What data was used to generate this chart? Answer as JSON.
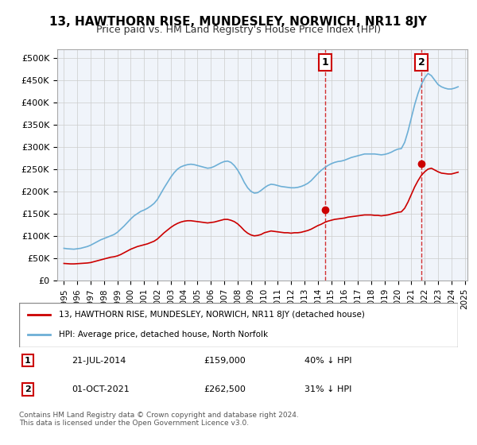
{
  "title": "13, HAWTHORN RISE, MUNDESLEY, NORWICH, NR11 8JY",
  "subtitle": "Price paid vs. HM Land Registry's House Price Index (HPI)",
  "hpi_color": "#6dafd6",
  "price_color": "#cc0000",
  "annotation_color": "#cc0000",
  "vline_color": "#cc0000",
  "background_color": "#ffffff",
  "grid_color": "#cccccc",
  "ylim": [
    0,
    520000
  ],
  "yticks": [
    0,
    50000,
    100000,
    150000,
    200000,
    250000,
    300000,
    350000,
    400000,
    450000,
    500000
  ],
  "ytick_labels": [
    "£0",
    "£50K",
    "£100K",
    "£150K",
    "£200K",
    "£250K",
    "£300K",
    "£350K",
    "£400K",
    "£450K",
    "£500K"
  ],
  "sale1_year": 2014.55,
  "sale1_price": 159000,
  "sale1_label": "1",
  "sale2_year": 2021.75,
  "sale2_price": 262500,
  "sale2_label": "2",
  "legend_red": "13, HAWTHORN RISE, MUNDESLEY, NORWICH, NR11 8JY (detached house)",
  "legend_blue": "HPI: Average price, detached house, North Norfolk",
  "table_row1": [
    "1",
    "21-JUL-2014",
    "£159,000",
    "40% ↓ HPI"
  ],
  "table_row2": [
    "2",
    "01-OCT-2021",
    "£262,500",
    "31% ↓ HPI"
  ],
  "footer": "Contains HM Land Registry data © Crown copyright and database right 2024.\nThis data is licensed under the Open Government Licence v3.0.",
  "hpi_data_x": [
    1995.0,
    1995.25,
    1995.5,
    1995.75,
    1996.0,
    1996.25,
    1996.5,
    1996.75,
    1997.0,
    1997.25,
    1997.5,
    1997.75,
    1998.0,
    1998.25,
    1998.5,
    1998.75,
    1999.0,
    1999.25,
    1999.5,
    1999.75,
    2000.0,
    2000.25,
    2000.5,
    2000.75,
    2001.0,
    2001.25,
    2001.5,
    2001.75,
    2002.0,
    2002.25,
    2002.5,
    2002.75,
    2003.0,
    2003.25,
    2003.5,
    2003.75,
    2004.0,
    2004.25,
    2004.5,
    2004.75,
    2005.0,
    2005.25,
    2005.5,
    2005.75,
    2006.0,
    2006.25,
    2006.5,
    2006.75,
    2007.0,
    2007.25,
    2007.5,
    2007.75,
    2008.0,
    2008.25,
    2008.5,
    2008.75,
    2009.0,
    2009.25,
    2009.5,
    2009.75,
    2010.0,
    2010.25,
    2010.5,
    2010.75,
    2011.0,
    2011.25,
    2011.5,
    2011.75,
    2012.0,
    2012.25,
    2012.5,
    2012.75,
    2013.0,
    2013.25,
    2013.5,
    2013.75,
    2014.0,
    2014.25,
    2014.5,
    2014.75,
    2015.0,
    2015.25,
    2015.5,
    2015.75,
    2016.0,
    2016.25,
    2016.5,
    2016.75,
    2017.0,
    2017.25,
    2017.5,
    2017.75,
    2018.0,
    2018.25,
    2018.5,
    2018.75,
    2019.0,
    2019.25,
    2019.5,
    2019.75,
    2020.0,
    2020.25,
    2020.5,
    2020.75,
    2021.0,
    2021.25,
    2021.5,
    2021.75,
    2022.0,
    2022.25,
    2022.5,
    2022.75,
    2023.0,
    2023.25,
    2023.5,
    2023.75,
    2024.0,
    2024.25,
    2024.5
  ],
  "hpi_data_y": [
    72000,
    71000,
    70500,
    70000,
    71000,
    72000,
    74000,
    76000,
    79000,
    83000,
    87000,
    91000,
    94000,
    97000,
    100000,
    103000,
    108000,
    115000,
    122000,
    130000,
    138000,
    145000,
    150000,
    155000,
    158000,
    162000,
    167000,
    173000,
    182000,
    195000,
    208000,
    220000,
    232000,
    242000,
    250000,
    255000,
    258000,
    260000,
    261000,
    260000,
    258000,
    256000,
    254000,
    252000,
    253000,
    256000,
    260000,
    264000,
    267000,
    268000,
    265000,
    258000,
    248000,
    235000,
    220000,
    208000,
    200000,
    196000,
    197000,
    202000,
    208000,
    213000,
    216000,
    215000,
    213000,
    211000,
    210000,
    209000,
    208000,
    208000,
    209000,
    211000,
    214000,
    218000,
    224000,
    232000,
    240000,
    247000,
    253000,
    258000,
    262000,
    265000,
    267000,
    268000,
    270000,
    273000,
    276000,
    278000,
    280000,
    282000,
    284000,
    284000,
    284000,
    284000,
    283000,
    282000,
    283000,
    285000,
    288000,
    292000,
    295000,
    296000,
    310000,
    335000,
    365000,
    395000,
    420000,
    440000,
    455000,
    465000,
    460000,
    450000,
    440000,
    435000,
    432000,
    430000,
    430000,
    432000,
    435000
  ],
  "price_data_x": [
    1995.0,
    1995.25,
    1995.5,
    1995.75,
    1996.0,
    1996.25,
    1996.5,
    1996.75,
    1997.0,
    1997.25,
    1997.5,
    1997.75,
    1998.0,
    1998.25,
    1998.5,
    1998.75,
    1999.0,
    1999.25,
    1999.5,
    1999.75,
    2000.0,
    2000.25,
    2000.5,
    2000.75,
    2001.0,
    2001.25,
    2001.5,
    2001.75,
    2002.0,
    2002.25,
    2002.5,
    2002.75,
    2003.0,
    2003.25,
    2003.5,
    2003.75,
    2004.0,
    2004.25,
    2004.5,
    2004.75,
    2005.0,
    2005.25,
    2005.5,
    2005.75,
    2006.0,
    2006.25,
    2006.5,
    2006.75,
    2007.0,
    2007.25,
    2007.5,
    2007.75,
    2008.0,
    2008.25,
    2008.5,
    2008.75,
    2009.0,
    2009.25,
    2009.5,
    2009.75,
    2010.0,
    2010.25,
    2010.5,
    2010.75,
    2011.0,
    2011.25,
    2011.5,
    2011.75,
    2012.0,
    2012.25,
    2012.5,
    2012.75,
    2013.0,
    2013.25,
    2013.5,
    2013.75,
    2014.0,
    2014.25,
    2014.5,
    2014.75,
    2015.0,
    2015.25,
    2015.5,
    2015.75,
    2016.0,
    2016.25,
    2016.5,
    2016.75,
    2017.0,
    2017.25,
    2017.5,
    2017.75,
    2018.0,
    2018.25,
    2018.5,
    2018.75,
    2019.0,
    2019.25,
    2019.5,
    2019.75,
    2020.0,
    2020.25,
    2020.5,
    2020.75,
    2021.0,
    2021.25,
    2021.5,
    2021.75,
    2022.0,
    2022.25,
    2022.5,
    2022.75,
    2023.0,
    2023.25,
    2023.5,
    2023.75,
    2024.0,
    2024.25,
    2024.5
  ],
  "price_data_y": [
    38000,
    37500,
    37000,
    37000,
    37500,
    38000,
    38500,
    39000,
    40000,
    42000,
    44000,
    46000,
    48000,
    50000,
    52000,
    53000,
    55000,
    58000,
    62000,
    66000,
    70000,
    73000,
    76000,
    78000,
    80000,
    82000,
    85000,
    88000,
    93000,
    100000,
    107000,
    113000,
    119000,
    124000,
    128000,
    131000,
    133000,
    134000,
    134000,
    133000,
    132000,
    131000,
    130000,
    129000,
    130000,
    131000,
    133000,
    135000,
    137000,
    137000,
    135000,
    132000,
    127000,
    120000,
    112000,
    106000,
    102000,
    100000,
    101000,
    103000,
    107000,
    109000,
    111000,
    110000,
    109000,
    108000,
    107000,
    107000,
    106000,
    107000,
    107000,
    108000,
    110000,
    112000,
    115000,
    119000,
    123000,
    126000,
    130000,
    133000,
    135000,
    137000,
    138000,
    139000,
    140000,
    142000,
    143000,
    144000,
    145000,
    146000,
    147000,
    147000,
    147000,
    146000,
    146000,
    145000,
    146000,
    147000,
    149000,
    151000,
    153000,
    154000,
    162000,
    176000,
    193000,
    210000,
    224000,
    236000,
    244000,
    250000,
    252000,
    248000,
    244000,
    241000,
    240000,
    239000,
    239000,
    241000,
    243000
  ]
}
